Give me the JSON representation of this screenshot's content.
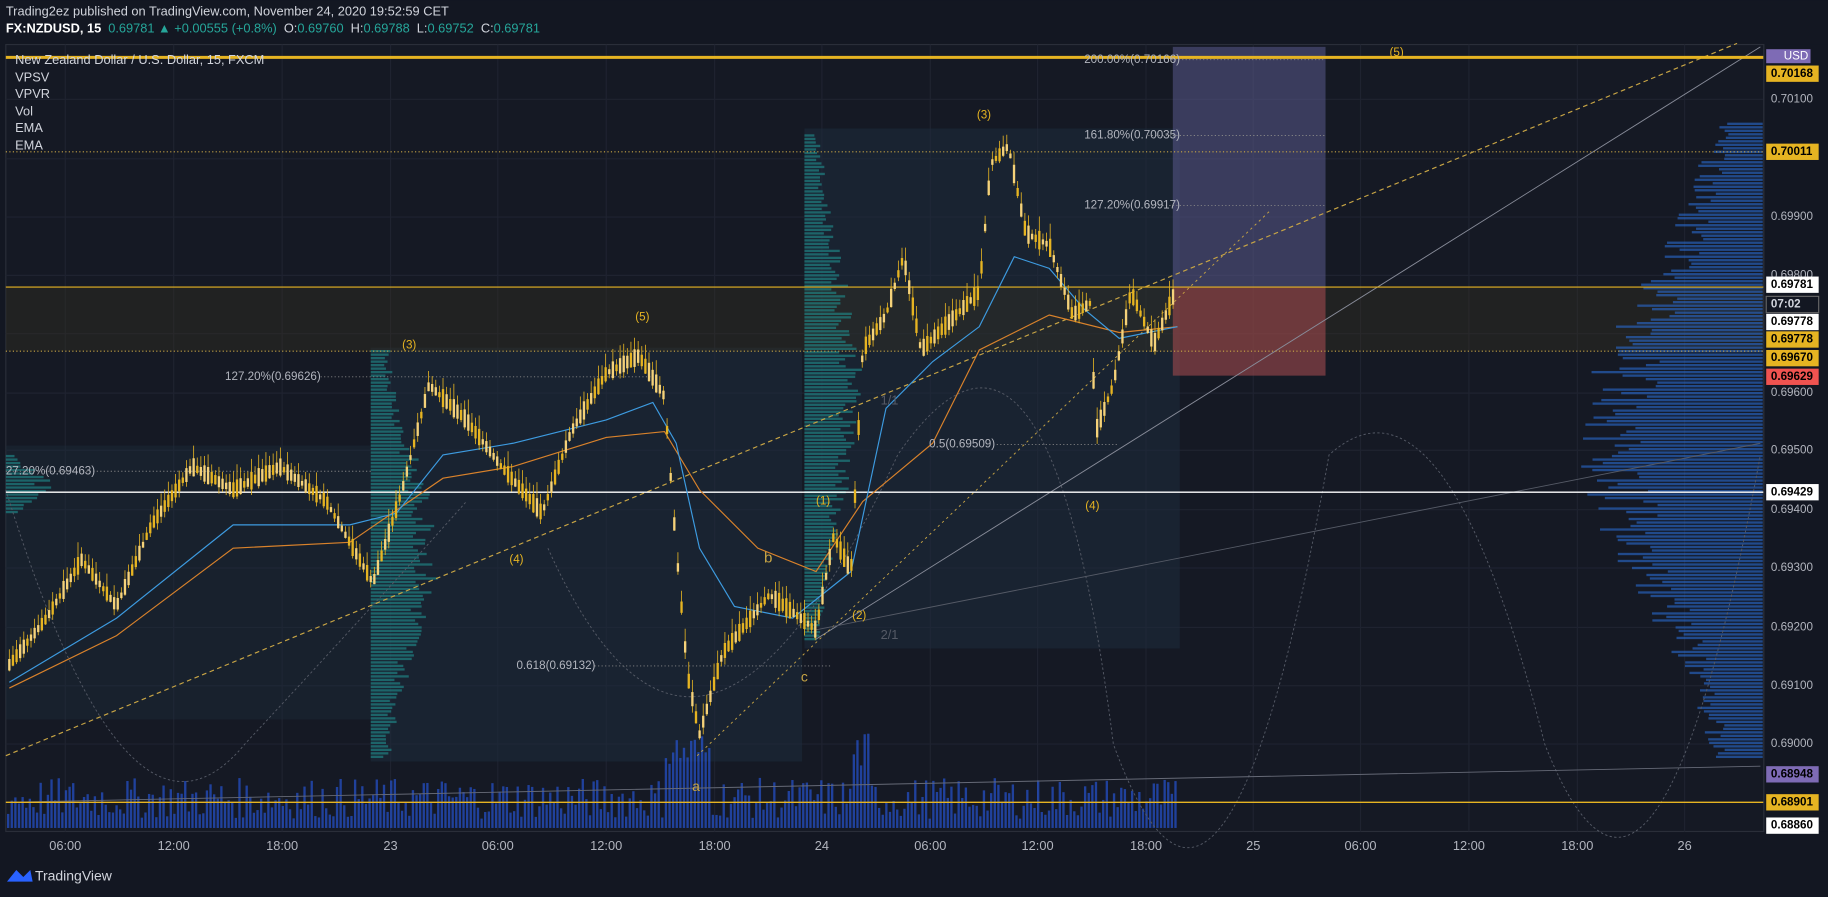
{
  "header": {
    "published": "Trading2ez published on TradingView.com, November 24, 2020 19:52:59 CET",
    "quote": [
      "FX:NZDUSD, 15",
      "0.69781",
      "▲",
      "+0.00555 (+0.8%)",
      "O:",
      "0.69760",
      "H:",
      "0.69788",
      "L:",
      "0.69752",
      "C:",
      "0.69781"
    ]
  },
  "legend": {
    "title": "New Zealand Dollar / U.S. Dollar, 15, FXCM",
    "studies": [
      "VPSV",
      "VPVR",
      "Vol",
      "EMA",
      "EMA"
    ]
  },
  "price_axis": {
    "currency": "USD",
    "labels": [
      "0.70168",
      "0.70100",
      "0.70011",
      "0.69900",
      "0.69800",
      "0.69781",
      "07:02",
      "0.69778",
      "0.69778",
      "0.69670",
      "0.69629",
      "0.69600",
      "0.69500",
      "0.69429",
      "0.69400",
      "0.69300",
      "0.69200",
      "0.69100",
      "0.69000",
      "0.68948",
      "0.68901",
      "0.68860"
    ]
  },
  "time_axis": {
    "labels": [
      "06:00",
      "12:00",
      "18:00",
      "23",
      "06:00",
      "12:00",
      "18:00",
      "24",
      "06:00",
      "12:00",
      "18:00",
      "25",
      "06:00",
      "12:00",
      "18:00",
      "26"
    ]
  },
  "annotations": {
    "fib": [
      "200.00%(0.70166)",
      "161.80%(0.70035)",
      "127.20%(0.69917)",
      "127.20%(0.69626)",
      "27.20%(0.69463)",
      "0.618(0.69132)",
      "0.5(0.69509)"
    ],
    "waves": [
      "(5)",
      "(3)",
      "(3)",
      "(5)",
      "(4)",
      "(1)",
      "(2)",
      "(4)",
      "a",
      "b",
      "c",
      "1/1",
      "2/1"
    ]
  },
  "footer": {
    "brand": "TradingView"
  }
}
